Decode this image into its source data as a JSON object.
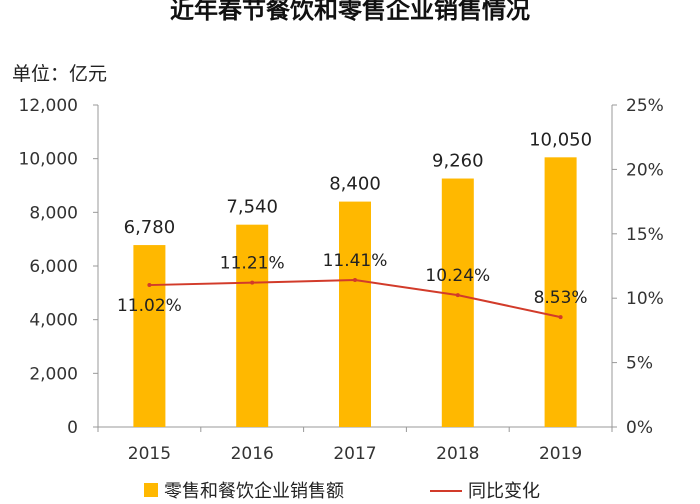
{
  "chart_data": {
    "type": "bar",
    "title": "近年春节餐饮和零售企业销售情况",
    "unit_label": "单位：亿元",
    "categories": [
      "2015",
      "2016",
      "2017",
      "2018",
      "2019"
    ],
    "series": [
      {
        "name": "零售和餐饮企业销售额",
        "type": "bar",
        "axis": "left",
        "color": "#FFB800",
        "values": [
          6780,
          7540,
          8400,
          9260,
          10050
        ],
        "labels": [
          "6,780",
          "7,540",
          "8,400",
          "9,260",
          "10,050"
        ]
      },
      {
        "name": "同比变化",
        "type": "line",
        "axis": "right",
        "color": "#D23B2A",
        "values": [
          11.02,
          11.21,
          11.41,
          10.24,
          8.53
        ],
        "labels": [
          "11.02%",
          "11.21%",
          "11.41%",
          "10.24%",
          "8.53%"
        ]
      }
    ],
    "y_left": {
      "min": 0,
      "max": 12000,
      "ticks": [
        0,
        2000,
        4000,
        6000,
        8000,
        10000,
        12000
      ],
      "tick_labels": [
        "0",
        "2,000",
        "4,000",
        "6,000",
        "8,000",
        "10,000",
        "12,000"
      ]
    },
    "y_right": {
      "min": 0,
      "max": 25,
      "ticks": [
        0,
        5,
        10,
        15,
        20,
        25
      ],
      "tick_labels": [
        "0%",
        "5%",
        "10%",
        "15%",
        "20%",
        "25%"
      ]
    },
    "grid": false,
    "legend_position": "bottom"
  }
}
